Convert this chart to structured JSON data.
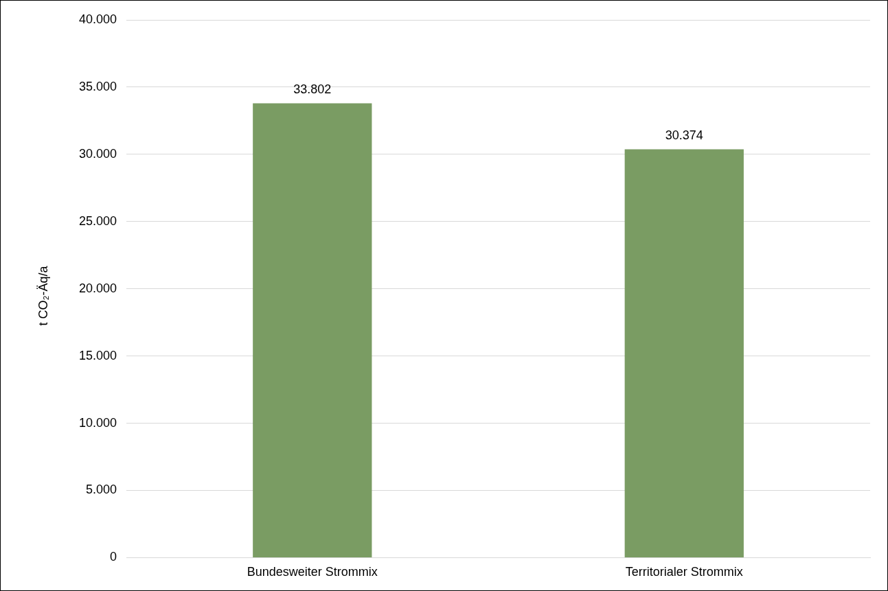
{
  "chart_data": {
    "type": "bar",
    "ylabel": "t CO₂-Äq/a",
    "categories": [
      "Bundesweiter Strommix",
      "Territorialer Strommix"
    ],
    "values": [
      33802,
      30374
    ],
    "color": "#7a9c63",
    "value_labels": [
      "33.802",
      "30.374"
    ],
    "ylim": [
      0,
      40000
    ],
    "yticks": [
      0,
      {
        "value": 5000,
        "label": "5.000"
      },
      {
        "value": 10000,
        "label": "10.000"
      },
      {
        "value": 15000,
        "label": "15.000"
      },
      {
        "value": 20000,
        "label": "20.000"
      },
      {
        "value": 25000,
        "label": "25.000"
      },
      {
        "value": 30000,
        "label": "30.000"
      },
      {
        "value": 35000,
        "label": "35.000"
      },
      {
        "value": 40000,
        "label": "40.000"
      }
    ],
    "grid": "y",
    "legend": false
  }
}
